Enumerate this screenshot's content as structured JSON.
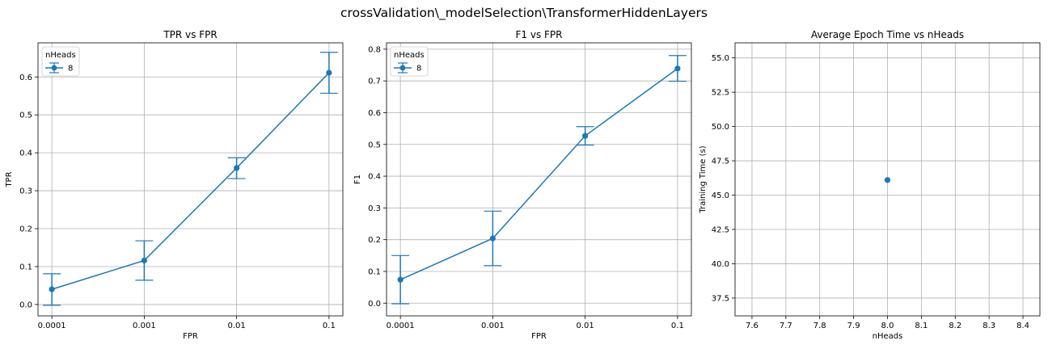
{
  "figure": {
    "suptitle": "crossValidation\\_modelSelection\\TransformerHiddenLayers"
  },
  "colors": {
    "series": "#1f77b4",
    "grid": "#b0b0b0",
    "axes": "#000000"
  },
  "chart_data": [
    {
      "type": "line",
      "title": "TPR vs FPR",
      "xlabel": "FPR",
      "ylabel": "TPR",
      "categories": [
        "0.0001",
        "0.001",
        "0.01",
        "0.1"
      ],
      "ylim": [
        -0.03,
        0.69
      ],
      "yticks": [
        0.0,
        0.1,
        0.2,
        0.3,
        0.4,
        0.5,
        0.6
      ],
      "ytick_labels": [
        "0.0",
        "0.1",
        "0.2",
        "0.3",
        "0.4",
        "0.5",
        "0.6"
      ],
      "grid": true,
      "legend": {
        "title": "nHeads",
        "placement": "top-left"
      },
      "series": [
        {
          "name": "8",
          "values": [
            0.04,
            0.116,
            0.36,
            0.611
          ],
          "err_low": [
            -0.002,
            0.064,
            0.332,
            0.557
          ],
          "err_high": [
            0.081,
            0.168,
            0.387,
            0.665
          ]
        }
      ]
    },
    {
      "type": "line",
      "title": "F1 vs FPR",
      "xlabel": "FPR",
      "ylabel": "F1",
      "categories": [
        "0.0001",
        "0.001",
        "0.01",
        "0.1"
      ],
      "ylim": [
        -0.04,
        0.82
      ],
      "yticks": [
        0.0,
        0.1,
        0.2,
        0.3,
        0.4,
        0.5,
        0.6,
        0.7,
        0.8
      ],
      "ytick_labels": [
        "0.0",
        "0.1",
        "0.2",
        "0.3",
        "0.4",
        "0.5",
        "0.6",
        "0.7",
        "0.8"
      ],
      "grid": true,
      "legend": {
        "title": "nHeads",
        "placement": "top-left"
      },
      "series": [
        {
          "name": "8",
          "values": [
            0.074,
            0.204,
            0.527,
            0.739
          ],
          "err_low": [
            -0.002,
            0.118,
            0.498,
            0.699
          ],
          "err_high": [
            0.15,
            0.29,
            0.556,
            0.78
          ]
        }
      ]
    },
    {
      "type": "scatter",
      "title": "Average Epoch Time vs nHeads",
      "xlabel": "nHeads",
      "ylabel": "Training Time (s)",
      "xlim": [
        7.55,
        8.45
      ],
      "xticks": [
        7.6,
        7.7,
        7.8,
        7.9,
        8.0,
        8.1,
        8.2,
        8.3,
        8.4
      ],
      "xtick_labels": [
        "7.6",
        "7.7",
        "7.8",
        "7.9",
        "8.0",
        "8.1",
        "8.2",
        "8.3",
        "8.4"
      ],
      "ylim": [
        36.2,
        56.1
      ],
      "yticks": [
        37.5,
        40.0,
        42.5,
        45.0,
        47.5,
        50.0,
        52.5,
        55.0
      ],
      "ytick_labels": [
        "37.5",
        "40.0",
        "42.5",
        "45.0",
        "47.5",
        "50.0",
        "52.5",
        "55.0"
      ],
      "grid": true,
      "points": [
        {
          "x": 8.0,
          "y": 46.1
        }
      ]
    }
  ]
}
